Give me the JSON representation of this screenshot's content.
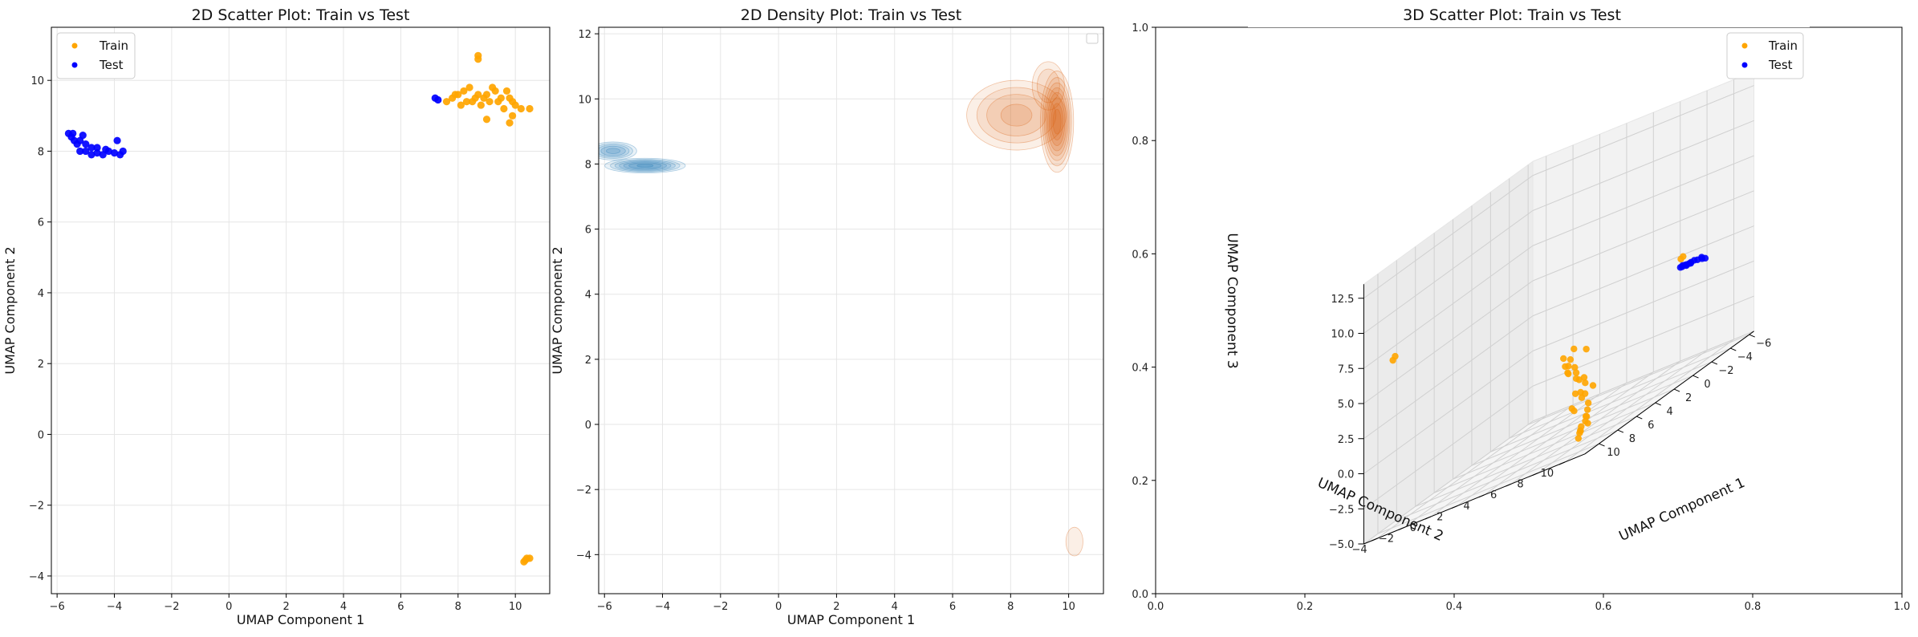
{
  "chart_data": [
    {
      "id": "scatter2d",
      "type": "scatter",
      "title": "2D Scatter Plot: Train vs Test",
      "xlabel": "UMAP Component 1",
      "ylabel": "UMAP Component 2",
      "xlim": [
        -6.2,
        11.2
      ],
      "ylim": [
        -4.5,
        11.5
      ],
      "xticks": [
        -6,
        -4,
        -2,
        0,
        2,
        4,
        6,
        8,
        10
      ],
      "yticks": [
        -4,
        -2,
        0,
        2,
        4,
        6,
        8,
        10
      ],
      "xtick_labels": [
        "−6",
        "−4",
        "−2",
        "0",
        "2",
        "4",
        "6",
        "8",
        "10"
      ],
      "ytick_labels": [
        "−4",
        "−2",
        "0",
        "2",
        "4",
        "6",
        "8",
        "10"
      ],
      "grid": true,
      "legend": "top-left",
      "series": [
        {
          "name": "Train",
          "color": "#FFA500",
          "points": [
            [
              7.6,
              9.4
            ],
            [
              7.8,
              9.5
            ],
            [
              8.0,
              9.6
            ],
            [
              8.2,
              9.7
            ],
            [
              8.4,
              9.8
            ],
            [
              8.6,
              9.5
            ],
            [
              8.8,
              9.3
            ],
            [
              9.0,
              9.6
            ],
            [
              9.2,
              9.8
            ],
            [
              9.4,
              9.4
            ],
            [
              9.6,
              9.2
            ],
            [
              9.8,
              9.5
            ],
            [
              10.0,
              9.3
            ],
            [
              10.2,
              9.2
            ],
            [
              10.5,
              9.2
            ],
            [
              8.1,
              9.3
            ],
            [
              8.5,
              9.4
            ],
            [
              8.9,
              9.5
            ],
            [
              9.3,
              9.7
            ],
            [
              9.7,
              9.7
            ],
            [
              7.9,
              9.6
            ],
            [
              8.3,
              9.4
            ],
            [
              8.7,
              9.6
            ],
            [
              9.1,
              9.4
            ],
            [
              9.5,
              9.5
            ],
            [
              9.9,
              9.0
            ],
            [
              9.8,
              8.8
            ],
            [
              9.0,
              8.9
            ],
            [
              9.9,
              9.4
            ],
            [
              8.7,
              10.7
            ],
            [
              8.7,
              10.6
            ],
            [
              10.3,
              -3.6
            ],
            [
              10.4,
              -3.5
            ],
            [
              10.5,
              -3.5
            ],
            [
              10.35,
              -3.55
            ]
          ]
        },
        {
          "name": "Test",
          "color": "#0000FF",
          "points": [
            [
              -5.6,
              8.5
            ],
            [
              -5.5,
              8.4
            ],
            [
              -5.4,
              8.3
            ],
            [
              -5.3,
              8.2
            ],
            [
              -5.2,
              8.0
            ],
            [
              -5.0,
              8.0
            ],
            [
              -4.8,
              7.9
            ],
            [
              -4.6,
              7.95
            ],
            [
              -4.4,
              7.9
            ],
            [
              -4.2,
              8.0
            ],
            [
              -4.0,
              7.95
            ],
            [
              -3.8,
              7.9
            ],
            [
              -3.7,
              8.0
            ],
            [
              -4.6,
              8.1
            ],
            [
              -5.0,
              8.2
            ],
            [
              -5.45,
              8.5
            ],
            [
              -5.2,
              8.3
            ],
            [
              -4.8,
              8.1
            ],
            [
              -4.3,
              8.05
            ],
            [
              -3.9,
              8.3
            ],
            [
              -5.1,
              8.45
            ],
            [
              7.2,
              9.5
            ],
            [
              7.3,
              9.45
            ]
          ]
        }
      ]
    },
    {
      "id": "density2d",
      "type": "heatmap",
      "title": "2D Density Plot: Train vs Test",
      "xlabel": "UMAP Component 1",
      "ylabel": "UMAP Component 2",
      "xlim": [
        -6.2,
        11.2
      ],
      "ylim": [
        -5.2,
        12.2
      ],
      "xticks": [
        -6,
        -4,
        -2,
        0,
        2,
        4,
        6,
        8,
        10
      ],
      "yticks": [
        -4,
        -2,
        0,
        2,
        4,
        6,
        8,
        10,
        12
      ],
      "xtick_labels": [
        "−6",
        "−4",
        "−2",
        "0",
        "2",
        "4",
        "6",
        "8",
        "10"
      ],
      "ytick_labels": [
        "−4",
        "−2",
        "0",
        "2",
        "4",
        "6",
        "8",
        "10",
        "12"
      ],
      "grid": true,
      "legend": "top-right (empty)",
      "series": [
        {
          "name": "Test",
          "color": "#1F77B4",
          "modes": [
            {
              "x": -5.7,
              "y": 8.4,
              "sx": 0.35,
              "sy": 0.12,
              "peak": 0.55
            },
            {
              "x": -4.6,
              "y": 7.95,
              "sx": 0.55,
              "sy": 0.09,
              "peak": 0.85
            }
          ]
        },
        {
          "name": "Train",
          "color": "#D95F0E",
          "modes": [
            {
              "x": 9.6,
              "y": 9.3,
              "sx": 0.22,
              "sy": 0.6,
              "peak": 1.0
            },
            {
              "x": 8.2,
              "y": 9.5,
              "sx": 0.8,
              "sy": 0.5,
              "peak": 0.4
            },
            {
              "x": 9.3,
              "y": 10.4,
              "sx": 0.3,
              "sy": 0.4,
              "peak": 0.25
            },
            {
              "x": 10.2,
              "y": -3.6,
              "sx": 0.2,
              "sy": 0.3,
              "peak": 0.15
            }
          ]
        }
      ]
    },
    {
      "id": "scatter3d",
      "type": "scatter",
      "title": "3D Scatter Plot: Train vs Test",
      "outer_xlim": [
        0.0,
        1.0
      ],
      "outer_ylim": [
        0.0,
        1.0
      ],
      "outer_xtick_labels": [
        "0.0",
        "0.2",
        "0.4",
        "0.6",
        "0.8",
        "1.0"
      ],
      "outer_ytick_labels": [
        "0.0",
        "0.2",
        "0.4",
        "0.6",
        "0.8",
        "1.0"
      ],
      "x_axis_label": "UMAP Component 1",
      "y_axis_label": "UMAP Component 2",
      "z_axis_label": "UMAP Component 3",
      "x_tick_labels": [
        "−6",
        "−4",
        "−2",
        "0",
        "2",
        "4",
        "6",
        "8",
        "10"
      ],
      "y_tick_labels": [
        "−4",
        "−2",
        "0",
        "2",
        "4",
        "6",
        "8",
        "10"
      ],
      "z_tick_labels": [
        "−5.0",
        "−2.5",
        "0.0",
        "2.5",
        "5.0",
        "7.5",
        "10.0",
        "12.5"
      ],
      "xlim": [
        -6.5,
        11.5
      ],
      "ylim": [
        -5,
        11.5
      ],
      "zlim": [
        -5,
        13.5
      ],
      "legend": "top-right",
      "series": [
        {
          "name": "Train",
          "color": "#FFA500",
          "points": [
            [
              8.5,
              9.0,
              -4.0
            ],
            [
              8.7,
              9.2,
              -3.8
            ],
            [
              8.9,
              9.4,
              -3.5
            ],
            [
              8.6,
              9.6,
              -3.0
            ],
            [
              8.8,
              9.8,
              -2.5
            ],
            [
              9.0,
              10.0,
              -2.0
            ],
            [
              8.7,
              9.3,
              -1.5
            ],
            [
              9.1,
              9.5,
              -1.0
            ],
            [
              8.9,
              9.7,
              -0.5
            ],
            [
              9.3,
              9.9,
              0.0
            ],
            [
              9.0,
              9.1,
              0.5
            ],
            [
              9.2,
              9.4,
              -4.2
            ],
            [
              8.4,
              9.0,
              -3.9
            ],
            [
              8.6,
              9.5,
              -3.3
            ],
            [
              9.4,
              10.1,
              -2.8
            ],
            [
              9.6,
              9.2,
              -1.8
            ],
            [
              9.8,
              9.6,
              -0.8
            ],
            [
              10.0,
              9.8,
              0.3
            ],
            [
              10.2,
              9.3,
              1.0
            ],
            [
              10.4,
              9.5,
              1.5
            ],
            [
              9.5,
              10.2,
              2.0
            ],
            [
              9.7,
              9.0,
              0.8
            ],
            [
              9.9,
              9.3,
              1.8
            ],
            [
              10.1,
              9.7,
              2.5
            ],
            [
              10.3,
              9.9,
              1.2
            ],
            [
              8.8,
              8.8,
              -2.2
            ],
            [
              9.2,
              9.9,
              -1.2
            ],
            [
              9.4,
              9.6,
              0.0
            ],
            [
              8.2,
              9.4,
              -3.6
            ],
            [
              10.5,
              9.2,
              2.2
            ],
            [
              10.6,
              9.4,
              1.6
            ],
            [
              8.5,
              10.0,
              -1.0
            ],
            [
              10.4,
              -3.6,
              7.0
            ],
            [
              10.3,
              -3.5,
              7.2
            ],
            [
              -3.0,
              8.5,
              3.0
            ],
            [
              -3.1,
              8.6,
              3.1
            ]
          ]
        },
        {
          "name": "Test",
          "color": "#0000FF",
          "points": [
            [
              -5.5,
              8.3,
              2.0
            ],
            [
              -5.2,
              8.2,
              2.0
            ],
            [
              -5.0,
              8.1,
              2.1
            ],
            [
              -4.8,
              8.0,
              2.1
            ],
            [
              -4.6,
              8.0,
              2.1
            ],
            [
              -4.4,
              7.95,
              2.15
            ],
            [
              -4.2,
              7.95,
              2.2
            ],
            [
              -4.0,
              7.9,
              2.2
            ],
            [
              -3.8,
              7.9,
              2.25
            ],
            [
              -5.4,
              8.4,
              1.9
            ],
            [
              -4.7,
              8.05,
              2.05
            ],
            [
              -4.3,
              8.0,
              2.1
            ],
            [
              -5.6,
              8.5,
              1.8
            ],
            [
              -3.9,
              8.0,
              2.3
            ]
          ]
        }
      ]
    }
  ]
}
